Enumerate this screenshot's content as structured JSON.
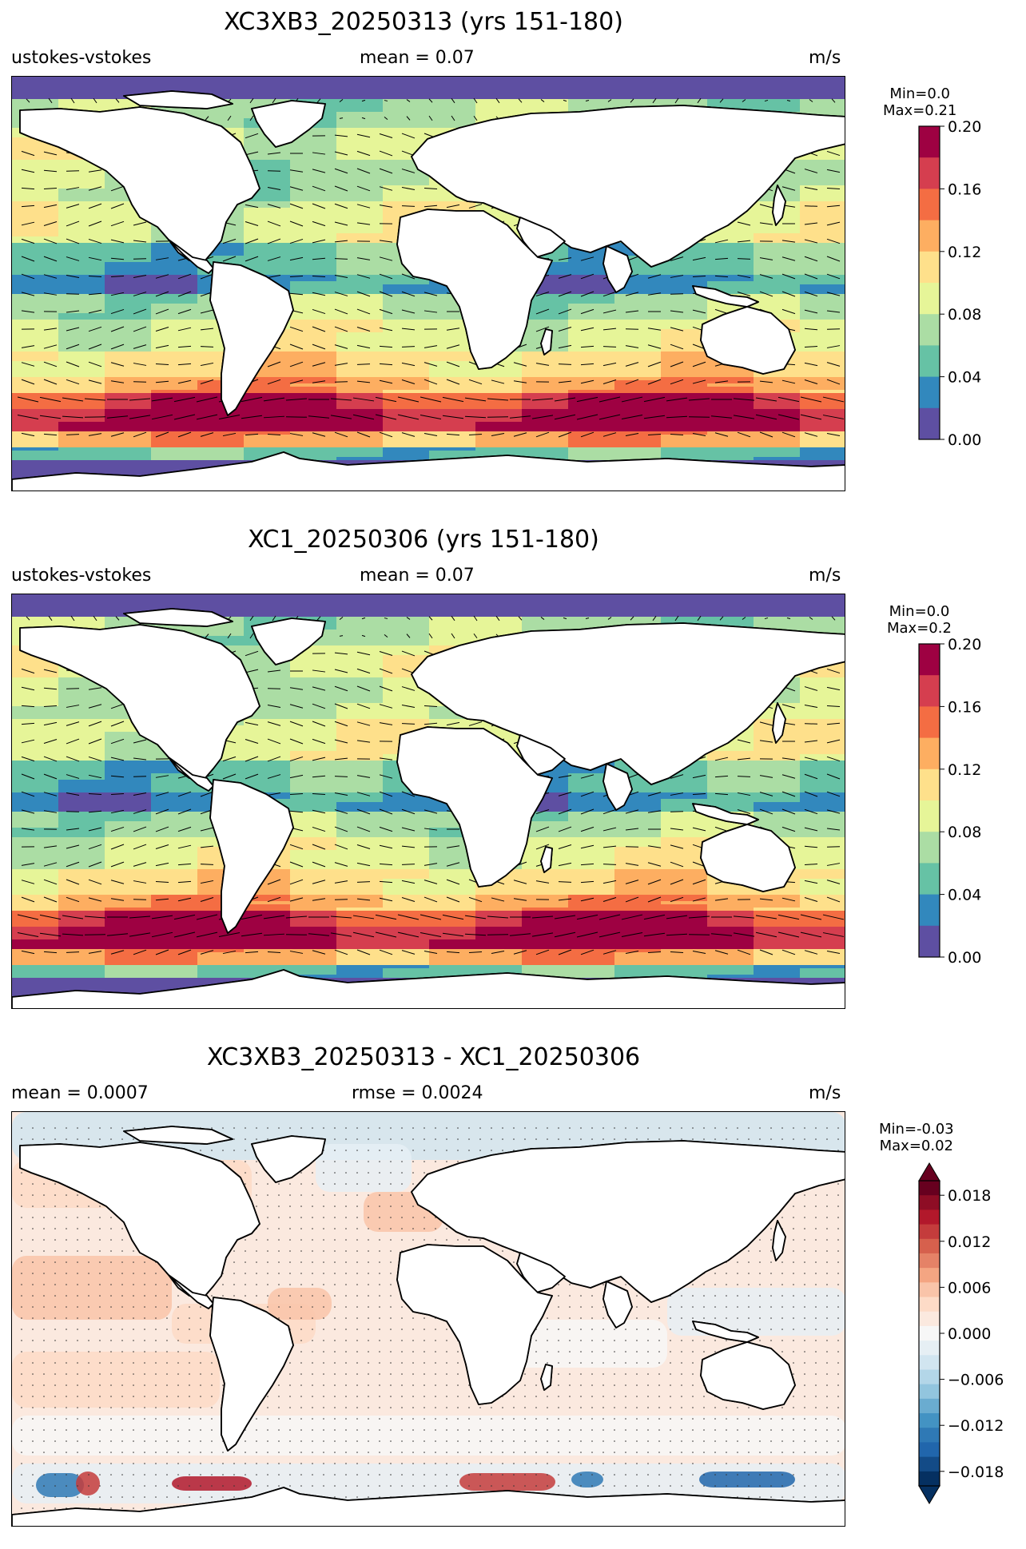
{
  "panels": [
    {
      "title": "XC3XB3_20250313 (yrs 151-180)",
      "left_label": "ustokes-vstokes",
      "center_label": "mean = 0.07",
      "right_label": "m/s",
      "min_text": "Min=0.0",
      "max_text": "Max=0.21",
      "colorbar": {
        "ticks": [
          "0.20",
          "0.16",
          "0.12",
          "0.08",
          "0.04",
          "0.00"
        ],
        "colors": [
          "#9e0142",
          "#d53e4f",
          "#f46d43",
          "#fdae61",
          "#fee08b",
          "#e6f598",
          "#abdda4",
          "#66c2a5",
          "#3288bd",
          "#5e4fa2"
        ],
        "extend": "neither"
      },
      "fill_style": "speed",
      "vectors": true
    },
    {
      "title": "XC1_20250306 (yrs 151-180)",
      "left_label": "ustokes-vstokes",
      "center_label": "mean = 0.07",
      "right_label": "m/s",
      "min_text": "Min=0.0",
      "max_text": "Max=0.2",
      "colorbar": {
        "ticks": [
          "0.20",
          "0.16",
          "0.12",
          "0.08",
          "0.04",
          "0.00"
        ],
        "colors": [
          "#9e0142",
          "#d53e4f",
          "#f46d43",
          "#fdae61",
          "#fee08b",
          "#e6f598",
          "#abdda4",
          "#66c2a5",
          "#3288bd",
          "#5e4fa2"
        ],
        "extend": "neither"
      },
      "fill_style": "speed",
      "vectors": true
    },
    {
      "title": "XC3XB3_20250313 - XC1_20250306",
      "left_label": "mean = 0.0007",
      "center_label": "rmse = 0.0024",
      "right_label": "m/s",
      "min_text": "Min=-0.03",
      "max_text": "Max=0.02",
      "colorbar": {
        "ticks": [
          "0.018",
          "0.012",
          "0.006",
          "0.000",
          "−0.006",
          "−0.012",
          "−0.018"
        ],
        "colors": [
          "#67001f",
          "#8e0d25",
          "#b2182b",
          "#c43c3c",
          "#d6604d",
          "#e58267",
          "#f4a582",
          "#f9c4a9",
          "#fddbc7",
          "#fbe9df",
          "#f7f7f7",
          "#e6eff4",
          "#d1e5f0",
          "#b3d6e8",
          "#92c5de",
          "#6aacd0",
          "#4393c3",
          "#2f79b5",
          "#2166ac",
          "#134b87",
          "#053061"
        ],
        "extend": "both"
      },
      "fill_style": "diff",
      "vectors": false
    }
  ]
}
